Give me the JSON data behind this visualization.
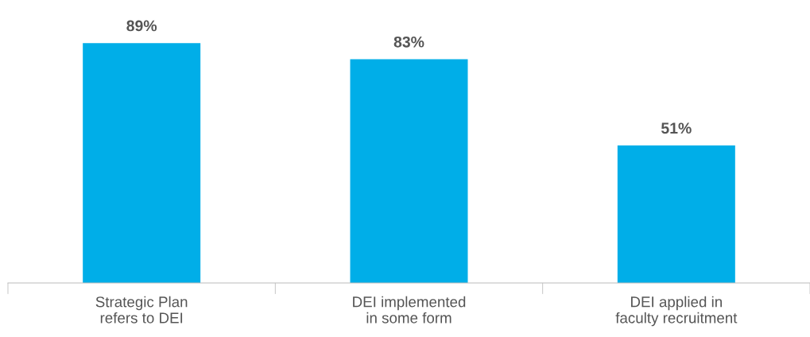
{
  "chart_data": {
    "type": "bar",
    "categories": [
      "Strategic Plan\nrefers to DEI",
      "DEI implemented\nin some form",
      "DEI applied in\nfaculty recruitment"
    ],
    "values": [
      89,
      83,
      51
    ],
    "value_labels": [
      "89%",
      "83%",
      "51%"
    ],
    "color": "#00aee8",
    "tick_labels": "x",
    "grid": false,
    "legend": false
  }
}
